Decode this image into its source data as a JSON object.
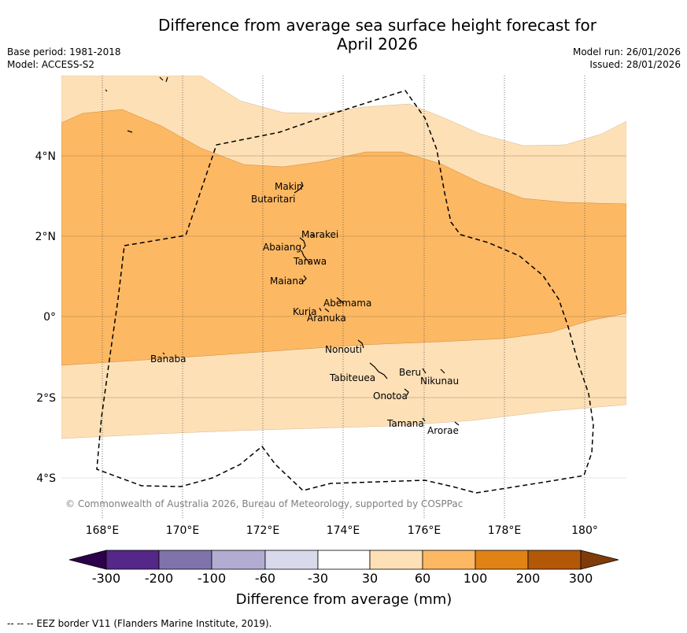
{
  "title": "Difference from average sea surface height forecast for April 2026",
  "title_line1": "Difference from average sea surface height forecast for",
  "title_line2": "April 2026",
  "base_period": "Base period: 1981-2018",
  "model": "Model: ACCESS-S2",
  "model_run": "Model run: 26/01/2026",
  "issued": "Issued: 28/01/2026",
  "copyright": "© Commonwealth of Australia 2026, Bureau of Meteorology, supported by COSPPac",
  "footnote": "--  --  -- EEZ border V11 (Flanders Marine Institute, 2019).",
  "map": {
    "lon_range": [
      167,
      181
    ],
    "lat_range": [
      -5,
      6
    ],
    "x_ticks": [
      "168°E",
      "170°E",
      "172°E",
      "174°E",
      "176°E",
      "178°E",
      "180°"
    ],
    "y_ticks": [
      "4°N",
      "2°N",
      "0°",
      "2°S",
      "4°S"
    ],
    "islands": [
      {
        "name": "Makin",
        "lon": 173.0,
        "lat": 3.3
      },
      {
        "name": "Butaritari",
        "lon": 172.9,
        "lat": 3.1
      },
      {
        "name": "Marakei",
        "lon": 173.3,
        "lat": 2.0
      },
      {
        "name": "Abaiang",
        "lon": 172.9,
        "lat": 1.8
      },
      {
        "name": "Tarawa",
        "lon": 173.0,
        "lat": 1.4
      },
      {
        "name": "Maiana",
        "lon": 173.0,
        "lat": 0.9
      },
      {
        "name": "Abemama",
        "lon": 173.8,
        "lat": 0.4
      },
      {
        "name": "Kuria",
        "lon": 173.4,
        "lat": 0.2
      },
      {
        "name": "Aranuka",
        "lon": 173.6,
        "lat": 0.2
      },
      {
        "name": "Nonouti",
        "lon": 174.4,
        "lat": -0.6
      },
      {
        "name": "Banaba",
        "lon": 169.5,
        "lat": -0.9
      },
      {
        "name": "Tabiteuea",
        "lon": 174.8,
        "lat": -1.3
      },
      {
        "name": "Beru",
        "lon": 176.0,
        "lat": -1.3
      },
      {
        "name": "Nikunau",
        "lon": 176.4,
        "lat": -1.4
      },
      {
        "name": "Onotoa",
        "lon": 175.5,
        "lat": -1.8
      },
      {
        "name": "Tamana",
        "lon": 176.0,
        "lat": -2.5
      },
      {
        "name": "Arorae",
        "lon": 176.8,
        "lat": -2.6
      }
    ]
  },
  "colorbar": {
    "label": "Difference from average (mm)",
    "ticks": [
      "-300",
      "-200",
      "-100",
      "-60",
      "-30",
      "30",
      "60",
      "100",
      "200",
      "300"
    ],
    "colors": [
      "#2d004b",
      "#542788",
      "#8073ac",
      "#b2abd2",
      "#d8daeb",
      "#ffffff",
      "#fee0b6",
      "#fdb863",
      "#e08214",
      "#b35806",
      "#7f3b08"
    ]
  },
  "legend_colors": {
    "band_30_60": "#fee0b6",
    "band_60_100": "#fdb863",
    "eez_border": "#000000"
  }
}
